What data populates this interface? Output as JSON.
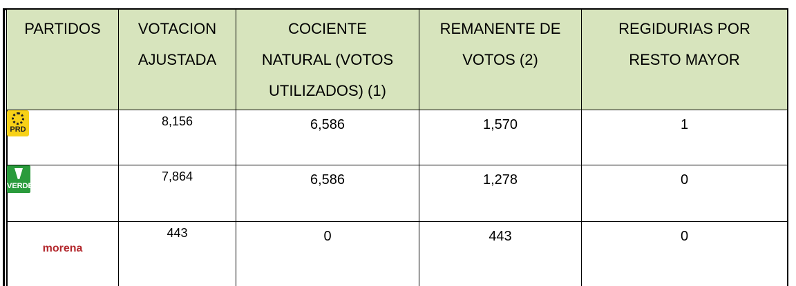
{
  "table": {
    "header": [
      [
        "PARTIDOS"
      ],
      [
        "VOTACION",
        "AJUSTADA"
      ],
      [
        "COCIENTE",
        "NATURAL (VOTOS",
        "UTILIZADOS) (1)"
      ],
      [
        "REMANENTE DE",
        "VOTOS (2)"
      ],
      [
        "REGIDURIAS POR",
        "RESTO MAYOR"
      ]
    ],
    "rows": [
      [
        "PRD",
        "8,156",
        "6,586",
        "1,570",
        "1"
      ],
      [
        "VERDE",
        "7,864",
        "6,586",
        "1,278",
        "0"
      ],
      [
        "morena",
        "443",
        "0",
        "443",
        "0"
      ]
    ]
  }
}
